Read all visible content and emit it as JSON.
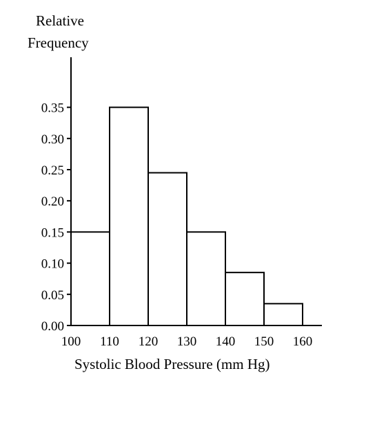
{
  "chart_data": {
    "type": "bar",
    "ylabel": [
      "Relative",
      "Frequency"
    ],
    "xlabel": "Systolic Blood Pressure (mm Hg)",
    "bins": [
      {
        "start": 100,
        "end": 110,
        "value": 0.15
      },
      {
        "start": 110,
        "end": 120,
        "value": 0.35
      },
      {
        "start": 120,
        "end": 130,
        "value": 0.245
      },
      {
        "start": 130,
        "end": 140,
        "value": 0.15
      },
      {
        "start": 140,
        "end": 150,
        "value": 0.085
      },
      {
        "start": 150,
        "end": 160,
        "value": 0.035
      }
    ],
    "x_ticks": [
      "100",
      "110",
      "120",
      "130",
      "140",
      "150",
      "160"
    ],
    "y_ticks": [
      "0.00",
      "0.05",
      "0.10",
      "0.15",
      "0.20",
      "0.25",
      "0.30",
      "0.35"
    ],
    "xlim": [
      100,
      165
    ],
    "ylim": [
      0,
      0.42
    ],
    "grid": false
  }
}
